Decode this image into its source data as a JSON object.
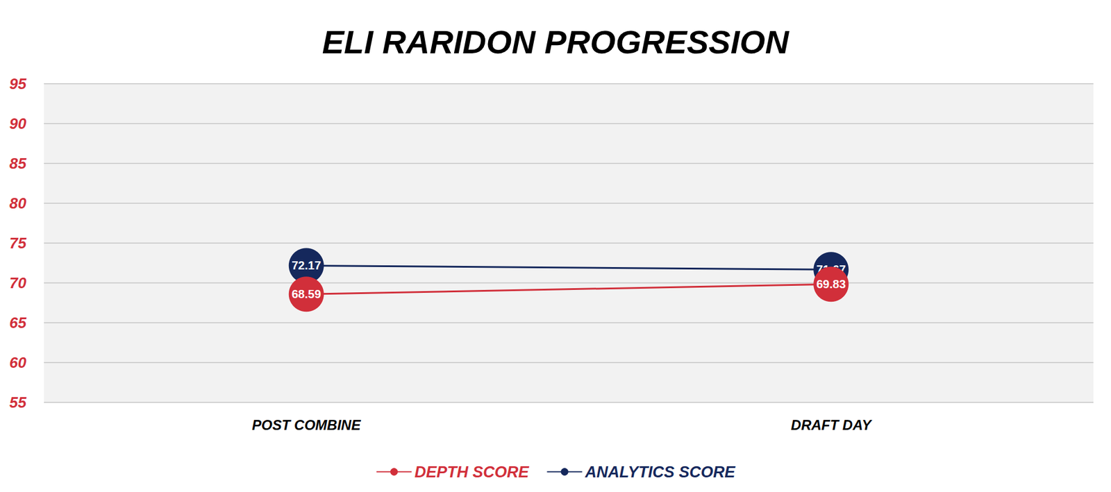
{
  "chart_data": {
    "type": "line",
    "title": "ELI RARIDON PROGRESSION",
    "categories": [
      "POST COMBINE",
      "DRAFT DAY"
    ],
    "series": [
      {
        "name": "DEPTH SCORE",
        "color": "#d12f3a",
        "values": [
          68.59,
          69.83
        ]
      },
      {
        "name": "ANALYTICS SCORE",
        "color": "#15285c",
        "values": [
          72.17,
          71.67
        ]
      }
    ],
    "ylim": [
      55,
      95
    ],
    "yticks": [
      55,
      60,
      65,
      70,
      75,
      80,
      85,
      90,
      95
    ],
    "grid": true,
    "legend": "bottom",
    "data_labels": true,
    "marker": "circle"
  }
}
